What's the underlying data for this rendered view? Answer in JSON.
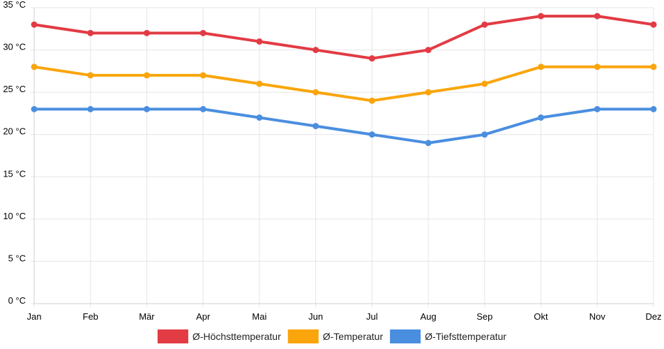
{
  "chart_data": {
    "type": "line",
    "categories": [
      "Jan",
      "Feb",
      "Mär",
      "Apr",
      "Mai",
      "Jun",
      "Jul",
      "Aug",
      "Sep",
      "Okt",
      "Nov",
      "Dez"
    ],
    "ylim": [
      0,
      35
    ],
    "yticks": [
      0,
      5,
      10,
      15,
      20,
      25,
      30,
      35
    ],
    "y_unit": " °C",
    "grid": true,
    "legend_position": "bottom",
    "series": [
      {
        "name": "Ø-Höchsttemperatur",
        "color": "#e23b44",
        "values": [
          33,
          32,
          32,
          32,
          31,
          30,
          29,
          30,
          33,
          34,
          34,
          33
        ]
      },
      {
        "name": "Ø-Temperatur",
        "color": "#f9a50b",
        "values": [
          28,
          27,
          27,
          27,
          26,
          25,
          24,
          25,
          26,
          28,
          28,
          28
        ]
      },
      {
        "name": "Ø-Tiefsttemperatur",
        "color": "#4a8ee0",
        "values": [
          23,
          23,
          23,
          23,
          22,
          21,
          20,
          19,
          20,
          22,
          23,
          23
        ]
      }
    ]
  }
}
